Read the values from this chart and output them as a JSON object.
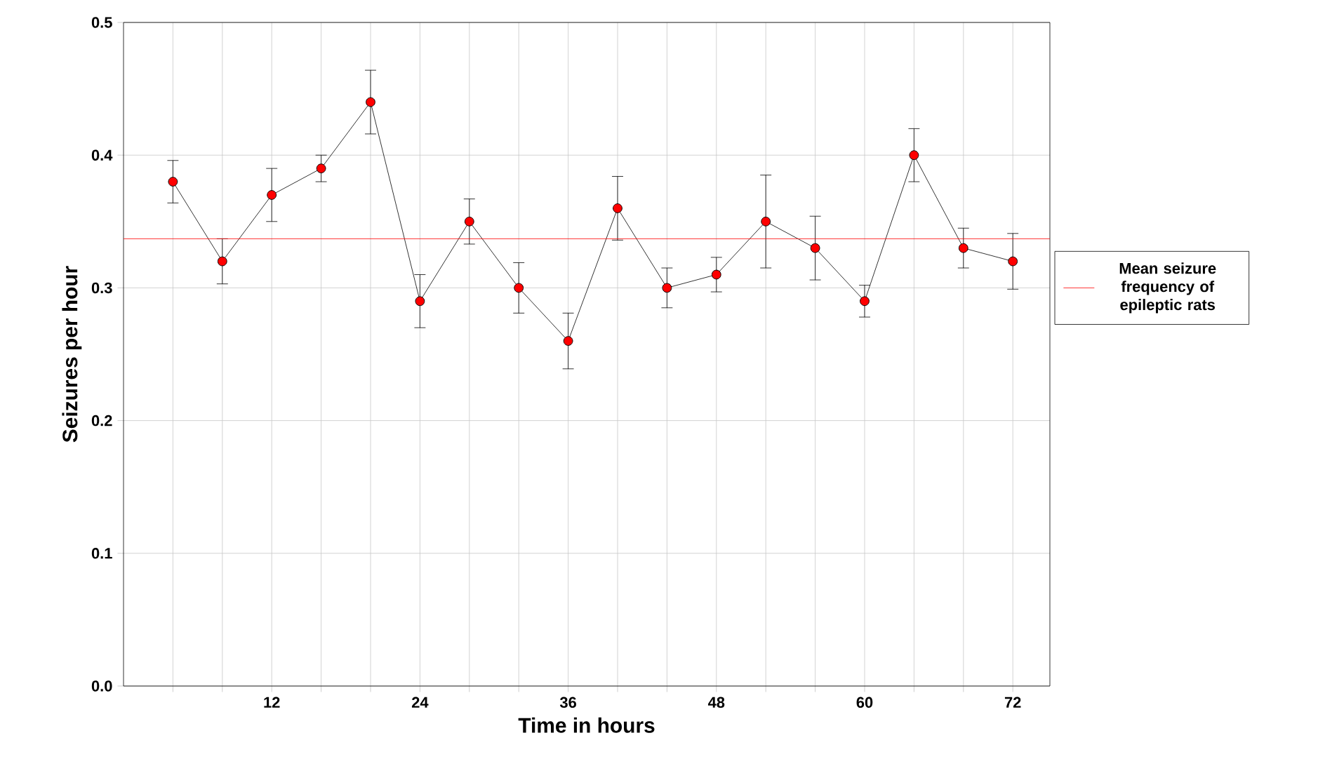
{
  "chart_data": {
    "type": "line",
    "xlabel": "Time in hours",
    "ylabel": "Seizures per hour",
    "x": [
      4,
      8,
      12,
      16,
      20,
      24,
      28,
      32,
      36,
      40,
      44,
      48,
      52,
      56,
      60,
      64,
      68,
      72
    ],
    "series": [
      {
        "color": "#ff0000",
        "values": [
          0.38,
          0.32,
          0.37,
          0.39,
          0.44,
          0.29,
          0.35,
          0.3,
          0.26,
          0.36,
          0.3,
          0.31,
          0.35,
          0.33,
          0.29,
          0.4,
          0.33,
          0.32
        ],
        "errors": [
          0.016,
          0.017,
          0.02,
          0.01,
          0.024,
          0.02,
          0.017,
          0.019,
          0.021,
          0.024,
          0.015,
          0.013,
          0.035,
          0.024,
          0.012,
          0.02,
          0.015,
          0.021
        ]
      }
    ],
    "xlim": [
      0,
      75
    ],
    "xticks": [
      {
        "value": 4,
        "label": null
      },
      {
        "value": 8,
        "label": null
      },
      12,
      {
        "value": 16,
        "label": null
      },
      {
        "value": 20,
        "label": null
      },
      24,
      {
        "value": 28,
        "label": null
      },
      {
        "value": 32,
        "label": null
      },
      36,
      {
        "value": 40,
        "label": null
      },
      {
        "value": 44,
        "label": null
      },
      48,
      {
        "value": 52,
        "label": null
      },
      {
        "value": 56,
        "label": null
      },
      60,
      {
        "value": 64,
        "label": null
      },
      {
        "value": 68,
        "label": null
      },
      72
    ],
    "ylim": [
      0,
      0.5
    ],
    "yticks": [
      {
        "value": 0,
        "label": "0.0"
      },
      0.1,
      0.2,
      0.3,
      0.4,
      0.5
    ],
    "ref_lines": [
      {
        "axis": "y",
        "value": 0.337,
        "label": "Mean seizure frequency of epileptic rats",
        "color": "#ff0000"
      }
    ],
    "grid": true,
    "legend": "right",
    "marker": "circle",
    "line_style": "solid"
  }
}
